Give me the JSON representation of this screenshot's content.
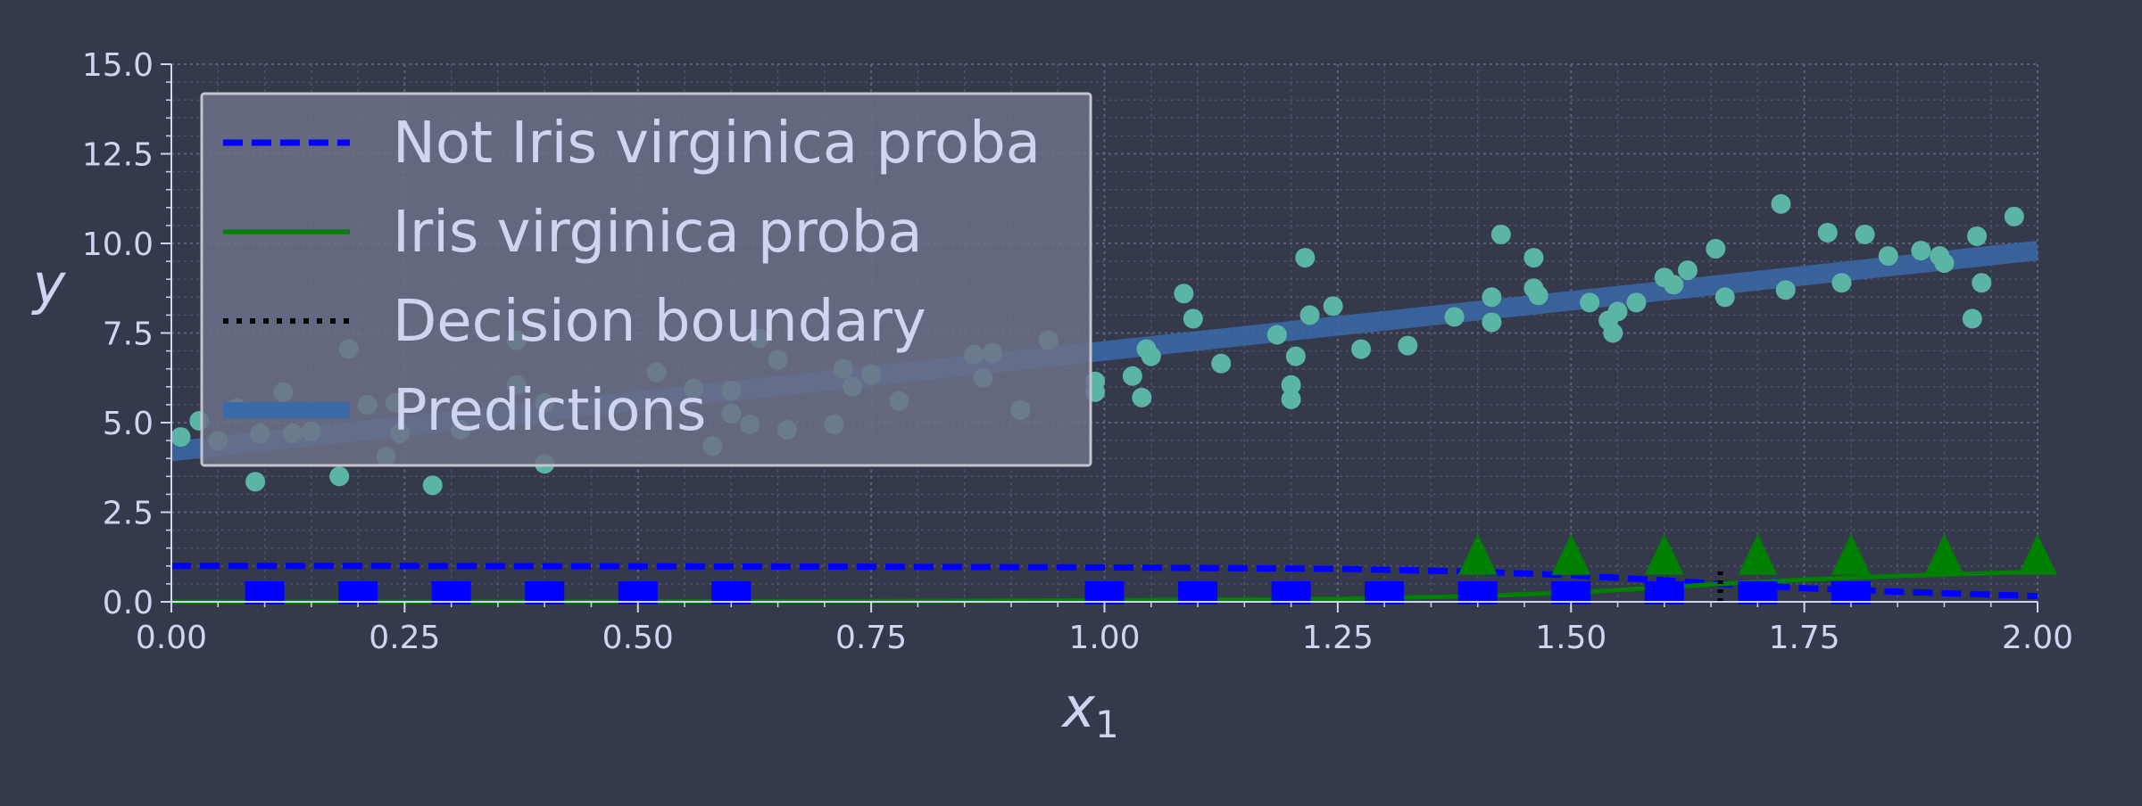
{
  "chart_data": {
    "type": "scatter",
    "xlabel_main": "x",
    "xlabel_sub": "1",
    "ylabel": "y",
    "xlim": [
      0.0,
      2.0
    ],
    "ylim": [
      0.0,
      15.0
    ],
    "grid": true,
    "legend_placement": "upper-left",
    "x_ticks": [
      "0.00",
      "0.25",
      "0.50",
      "0.75",
      "1.00",
      "1.25",
      "1.50",
      "1.75",
      "2.00"
    ],
    "y_ticks": [
      "0.0",
      "2.5",
      "5.0",
      "7.5",
      "10.0",
      "12.5",
      "15.0"
    ],
    "series": [
      {
        "name": "Not Iris virginica proba",
        "kind": "line",
        "style": "dashed",
        "color": "#0000ff",
        "x": [
          0.0,
          0.25,
          0.5,
          0.75,
          1.0,
          1.25,
          1.4,
          1.5,
          1.6,
          1.66,
          1.75,
          1.85,
          2.0
        ],
        "y": [
          1.0,
          1.0,
          0.99,
          0.98,
          0.96,
          0.92,
          0.84,
          0.74,
          0.6,
          0.5,
          0.38,
          0.28,
          0.16
        ]
      },
      {
        "name": "Iris virginica proba",
        "kind": "line",
        "style": "solid",
        "color": "#008000",
        "x": [
          0.0,
          0.25,
          0.5,
          0.75,
          1.0,
          1.25,
          1.4,
          1.5,
          1.6,
          1.66,
          1.75,
          1.85,
          2.0
        ],
        "y": [
          0.0,
          0.0,
          0.01,
          0.02,
          0.04,
          0.08,
          0.16,
          0.26,
          0.4,
          0.5,
          0.62,
          0.72,
          0.84
        ]
      },
      {
        "name": "Decision boundary",
        "kind": "vline",
        "style": "dotted",
        "color": "#000000",
        "x": [
          1.66,
          1.66
        ],
        "y": [
          0.0,
          1.0
        ]
      },
      {
        "name": "Predictions",
        "kind": "line",
        "style": "thick",
        "color": "#3b6aa8",
        "x": [
          0.0,
          2.0
        ],
        "y": [
          4.2,
          9.8
        ]
      },
      {
        "kind": "scatter",
        "marker": "circle",
        "color": "#5ab5a5",
        "points": [
          [
            0.01,
            4.6
          ],
          [
            0.03,
            5.05
          ],
          [
            0.05,
            4.5
          ],
          [
            0.07,
            5.4
          ],
          [
            0.09,
            3.35
          ],
          [
            0.095,
            4.7
          ],
          [
            0.12,
            5.85
          ],
          [
            0.13,
            4.7
          ],
          [
            0.15,
            4.75
          ],
          [
            0.18,
            3.5
          ],
          [
            0.19,
            7.05
          ],
          [
            0.21,
            5.5
          ],
          [
            0.23,
            4.05
          ],
          [
            0.24,
            5.55
          ],
          [
            0.245,
            4.7
          ],
          [
            0.28,
            3.25
          ],
          [
            0.31,
            4.8
          ],
          [
            0.37,
            6.05
          ],
          [
            0.37,
            7.3
          ],
          [
            0.4,
            5.55
          ],
          [
            0.4,
            3.85
          ],
          [
            0.52,
            6.4
          ],
          [
            0.56,
            5.95
          ],
          [
            0.58,
            4.35
          ],
          [
            0.6,
            5.9
          ],
          [
            0.6,
            5.25
          ],
          [
            0.62,
            4.95
          ],
          [
            0.63,
            7.35
          ],
          [
            0.65,
            6.75
          ],
          [
            0.66,
            4.8
          ],
          [
            0.71,
            4.95
          ],
          [
            0.72,
            6.5
          ],
          [
            0.73,
            6.0
          ],
          [
            0.75,
            6.35
          ],
          [
            0.78,
            5.6
          ],
          [
            0.86,
            6.9
          ],
          [
            0.87,
            6.25
          ],
          [
            0.88,
            6.95
          ],
          [
            0.91,
            5.35
          ],
          [
            0.94,
            7.3
          ],
          [
            0.99,
            6.15
          ],
          [
            0.99,
            5.85
          ],
          [
            1.03,
            6.3
          ],
          [
            1.04,
            5.7
          ],
          [
            1.045,
            7.05
          ],
          [
            1.05,
            6.85
          ],
          [
            1.085,
            8.6
          ],
          [
            1.095,
            7.9
          ],
          [
            1.125,
            6.65
          ],
          [
            1.185,
            7.45
          ],
          [
            1.2,
            6.05
          ],
          [
            1.2,
            5.65
          ],
          [
            1.205,
            6.85
          ],
          [
            1.215,
            9.6
          ],
          [
            1.22,
            8.0
          ],
          [
            1.245,
            8.25
          ],
          [
            1.275,
            7.05
          ],
          [
            1.325,
            7.15
          ],
          [
            1.375,
            7.95
          ],
          [
            1.415,
            8.5
          ],
          [
            1.415,
            7.8
          ],
          [
            1.425,
            10.25
          ],
          [
            1.46,
            9.6
          ],
          [
            1.46,
            8.75
          ],
          [
            1.465,
            8.55
          ],
          [
            1.52,
            8.35
          ],
          [
            1.54,
            7.85
          ],
          [
            1.545,
            7.5
          ],
          [
            1.55,
            8.1
          ],
          [
            1.57,
            8.35
          ],
          [
            1.6,
            9.05
          ],
          [
            1.61,
            8.85
          ],
          [
            1.625,
            9.25
          ],
          [
            1.655,
            9.85
          ],
          [
            1.665,
            8.5
          ],
          [
            1.725,
            11.1
          ],
          [
            1.73,
            8.7
          ],
          [
            1.775,
            10.3
          ],
          [
            1.79,
            8.9
          ],
          [
            1.815,
            10.25
          ],
          [
            1.84,
            9.65
          ],
          [
            1.875,
            9.8
          ],
          [
            1.895,
            9.65
          ],
          [
            1.9,
            9.45
          ],
          [
            1.93,
            7.9
          ],
          [
            1.935,
            10.2
          ],
          [
            1.94,
            8.9
          ],
          [
            1.975,
            10.75
          ]
        ]
      },
      {
        "kind": "scatter",
        "marker": "square",
        "color": "#0000ff",
        "points": [
          [
            0.1,
            0.25
          ],
          [
            0.2,
            0.25
          ],
          [
            0.3,
            0.25
          ],
          [
            0.4,
            0.25
          ],
          [
            0.5,
            0.25
          ],
          [
            0.6,
            0.25
          ],
          [
            1.0,
            0.25
          ],
          [
            1.1,
            0.25
          ],
          [
            1.2,
            0.25
          ],
          [
            1.3,
            0.25
          ],
          [
            1.4,
            0.25
          ],
          [
            1.5,
            0.25
          ],
          [
            1.6,
            0.25
          ],
          [
            1.7,
            0.25
          ],
          [
            1.8,
            0.25
          ]
        ]
      },
      {
        "kind": "scatter",
        "marker": "triangle",
        "color": "#008000",
        "points": [
          [
            1.4,
            1.0
          ],
          [
            1.5,
            1.0
          ],
          [
            1.6,
            1.0
          ],
          [
            1.7,
            1.0
          ],
          [
            1.8,
            1.0
          ],
          [
            1.9,
            1.0
          ],
          [
            2.0,
            1.0
          ]
        ]
      }
    ]
  },
  "colors": {
    "background": "#343a4c",
    "text": "#d0d4f0",
    "grid": "#62687c",
    "legend_fill": "#6c7188",
    "legend_border": "#c4c4cc"
  }
}
